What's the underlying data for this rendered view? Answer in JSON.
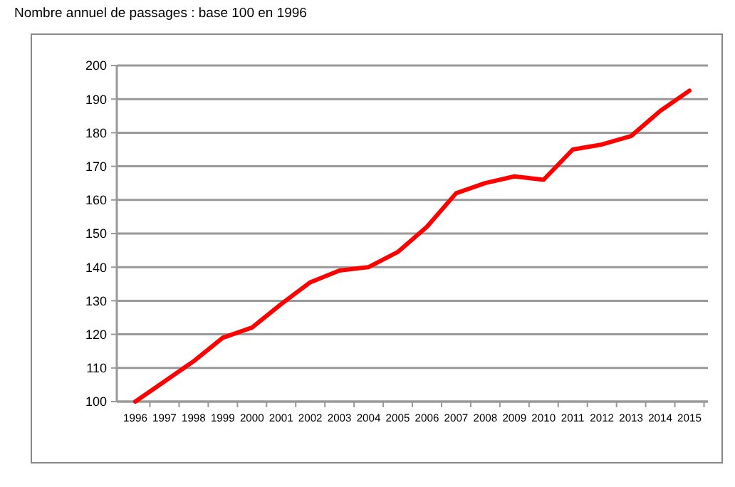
{
  "chart_data": {
    "type": "line",
    "title": "Nombre annuel de passages : base 100 en 1996",
    "categories": [
      "1996",
      "1997",
      "1998",
      "1999",
      "2000",
      "2001",
      "2002",
      "2003",
      "2004",
      "2005",
      "2006",
      "2007",
      "2008",
      "2009",
      "2010",
      "2011",
      "2012",
      "2013",
      "2014",
      "2015"
    ],
    "series": [
      {
        "color": "#ff0000",
        "values": [
          100,
          106,
          112,
          119,
          122,
          129,
          135.5,
          139,
          140,
          144.5,
          152,
          162,
          165,
          167,
          166,
          175,
          176.5,
          179,
          186.5,
          192.5
        ]
      }
    ],
    "ylim": [
      100,
      200
    ],
    "yticks": [
      100,
      110,
      120,
      130,
      140,
      150,
      160,
      170,
      180,
      190,
      200
    ],
    "grid": "y",
    "marker": "none",
    "line_style": "solid"
  }
}
